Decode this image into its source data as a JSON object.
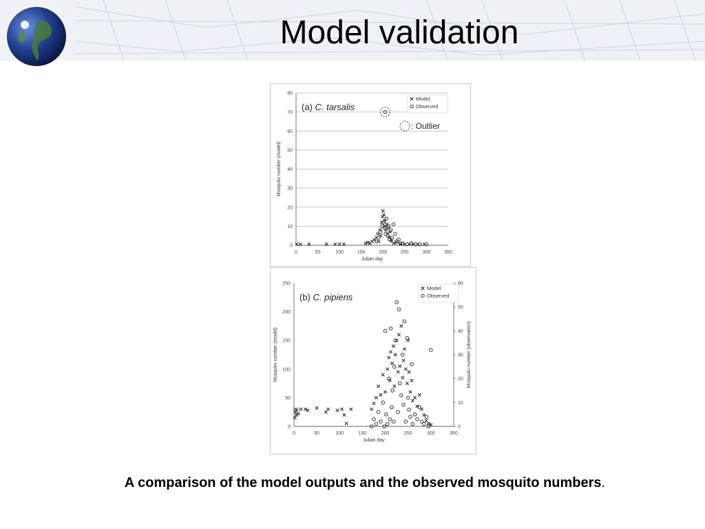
{
  "slide": {
    "title": "Model validation",
    "caption": "A comparison of the model outputs and the observed mosquito numbers",
    "caption_period": "."
  },
  "colors": {
    "accent_blue": "#1f4e9a",
    "band_background": "#eef2f7",
    "marker": "#333333"
  },
  "icons": {
    "logo": "globe-icon"
  },
  "chart_data": [
    {
      "type": "scatter",
      "panel_label": "(a)",
      "species": "C. tarsalis",
      "xlabel": "Julian day",
      "ylabel": "Mosquito number (model)",
      "xlim": [
        0,
        350
      ],
      "ylim": [
        0,
        80
      ],
      "x_ticks": [
        0,
        50,
        100,
        150,
        200,
        250,
        300,
        350
      ],
      "y_ticks": [
        0,
        10,
        20,
        30,
        40,
        50,
        60,
        70,
        80
      ],
      "grid": true,
      "legend": "top-right",
      "outlier_label": ": Outlier",
      "outlier_point": [
        205,
        70
      ],
      "series": [
        {
          "name": "Model",
          "marker": "x",
          "points": [
            [
              2,
              0.5
            ],
            [
              10,
              0.5
            ],
            [
              30,
              0.5
            ],
            [
              70,
              0.5
            ],
            [
              90,
              0.5
            ],
            [
              100,
              0.5
            ],
            [
              110,
              0.5
            ],
            [
              160,
              1
            ],
            [
              165,
              1.5
            ],
            [
              170,
              1
            ],
            [
              175,
              2
            ],
            [
              180,
              3
            ],
            [
              185,
              4
            ],
            [
              188,
              6
            ],
            [
              190,
              2
            ],
            [
              193,
              8
            ],
            [
              195,
              5
            ],
            [
              197,
              12
            ],
            [
              199,
              15
            ],
            [
              200,
              18
            ],
            [
              202,
              16
            ],
            [
              204,
              13
            ],
            [
              205,
              10
            ],
            [
              207,
              8
            ],
            [
              209,
              11
            ],
            [
              210,
              6
            ],
            [
              212,
              9
            ],
            [
              214,
              4
            ],
            [
              216,
              7
            ],
            [
              218,
              3
            ],
            [
              220,
              2
            ],
            [
              225,
              1
            ],
            [
              230,
              1.5
            ],
            [
              240,
              0.5
            ],
            [
              250,
              0.5
            ],
            [
              260,
              0.5
            ],
            [
              270,
              0.5
            ],
            [
              280,
              0.5
            ],
            [
              295,
              0.5
            ]
          ]
        },
        {
          "name": "Observed",
          "marker": "o",
          "points": [
            [
              185,
              2
            ],
            [
              190,
              4
            ],
            [
              194,
              7
            ],
            [
              198,
              10
            ],
            [
              201,
              12
            ],
            [
              203,
              9
            ],
            [
              206,
              6
            ],
            [
              208,
              14
            ],
            [
              211,
              5
            ],
            [
              213,
              10
            ],
            [
              215,
              3
            ],
            [
              218,
              8
            ],
            [
              221,
              4
            ],
            [
              224,
              11
            ],
            [
              228,
              6
            ],
            [
              232,
              2
            ],
            [
              236,
              3
            ],
            [
              240,
              1
            ],
            [
              245,
              1
            ],
            [
              255,
              0.5
            ],
            [
              265,
              1
            ],
            [
              275,
              0.5
            ],
            [
              285,
              0.5
            ],
            [
              300,
              0.5
            ]
          ]
        }
      ]
    },
    {
      "type": "scatter",
      "panel_label": "(b)",
      "species": "C. pipiens",
      "xlabel": "Julian day",
      "ylabel": "Mosquito number (model)",
      "y2label": "Mosquito number (observation)",
      "xlim": [
        0,
        350
      ],
      "ylim": [
        0,
        250
      ],
      "y2lim": [
        0,
        60
      ],
      "x_ticks": [
        0,
        50,
        100,
        150,
        200,
        250,
        300,
        350
      ],
      "y_ticks": [
        0,
        50,
        100,
        150,
        200,
        250
      ],
      "y2_ticks": [
        0,
        10,
        20,
        30,
        40,
        50,
        60
      ],
      "grid": false,
      "legend": "top-right",
      "series": [
        {
          "name": "Model",
          "marker": "x",
          "axis": "left",
          "points": [
            [
              2,
              15
            ],
            [
              3,
              25
            ],
            [
              4,
              30
            ],
            [
              5,
              20
            ],
            [
              6,
              28
            ],
            [
              10,
              22
            ],
            [
              15,
              30
            ],
            [
              25,
              30
            ],
            [
              30,
              28
            ],
            [
              50,
              32
            ],
            [
              70,
              25
            ],
            [
              75,
              30
            ],
            [
              95,
              28
            ],
            [
              105,
              30
            ],
            [
              110,
              20
            ],
            [
              115,
              5
            ],
            [
              125,
              30
            ],
            [
              170,
              30
            ],
            [
              175,
              40
            ],
            [
              180,
              50
            ],
            [
              185,
              70
            ],
            [
              190,
              55
            ],
            [
              195,
              90
            ],
            [
              200,
              60
            ],
            [
              205,
              100
            ],
            [
              208,
              120
            ],
            [
              210,
              80
            ],
            [
              212,
              130
            ],
            [
              215,
              110
            ],
            [
              218,
              140
            ],
            [
              220,
              70
            ],
            [
              222,
              125
            ],
            [
              225,
              150
            ],
            [
              228,
              95
            ],
            [
              230,
              160
            ],
            [
              232,
              105
            ],
            [
              235,
              175
            ],
            [
              238,
              85
            ],
            [
              240,
              115
            ],
            [
              242,
              135
            ],
            [
              245,
              100
            ],
            [
              248,
              75
            ],
            [
              250,
              150
            ],
            [
              252,
              95
            ],
            [
              255,
              60
            ],
            [
              258,
              80
            ],
            [
              260,
              45
            ],
            [
              265,
              50
            ],
            [
              270,
              35
            ],
            [
              275,
              55
            ],
            [
              280,
              30
            ],
            [
              285,
              20
            ],
            [
              290,
              10
            ],
            [
              295,
              5
            ],
            [
              300,
              3
            ]
          ]
        },
        {
          "name": "Observed",
          "marker": "o",
          "axis": "right",
          "points": [
            [
              170,
              0
            ],
            [
              175,
              3
            ],
            [
              180,
              1
            ],
            [
              185,
              6
            ],
            [
              190,
              2
            ],
            [
              195,
              10
            ],
            [
              198,
              0
            ],
            [
              200,
              40
            ],
            [
              202,
              5
            ],
            [
              205,
              1
            ],
            [
              208,
              20
            ],
            [
              210,
              3
            ],
            [
              212,
              41
            ],
            [
              214,
              8
            ],
            [
              216,
              15
            ],
            [
              218,
              2
            ],
            [
              220,
              25
            ],
            [
              222,
              36
            ],
            [
              225,
              52
            ],
            [
              228,
              6
            ],
            [
              230,
              49
            ],
            [
              232,
              18
            ],
            [
              235,
              13
            ],
            [
              238,
              30
            ],
            [
              240,
              9
            ],
            [
              242,
              44
            ],
            [
              245,
              2
            ],
            [
              248,
              37
            ],
            [
              250,
              12
            ],
            [
              252,
              7
            ],
            [
              255,
              4
            ],
            [
              258,
              26
            ],
            [
              260,
              1
            ],
            [
              265,
              5
            ],
            [
              270,
              3
            ],
            [
              275,
              8
            ],
            [
              280,
              2
            ],
            [
              285,
              1
            ],
            [
              290,
              4
            ],
            [
              295,
              0
            ],
            [
              300,
              32
            ]
          ]
        }
      ]
    }
  ]
}
